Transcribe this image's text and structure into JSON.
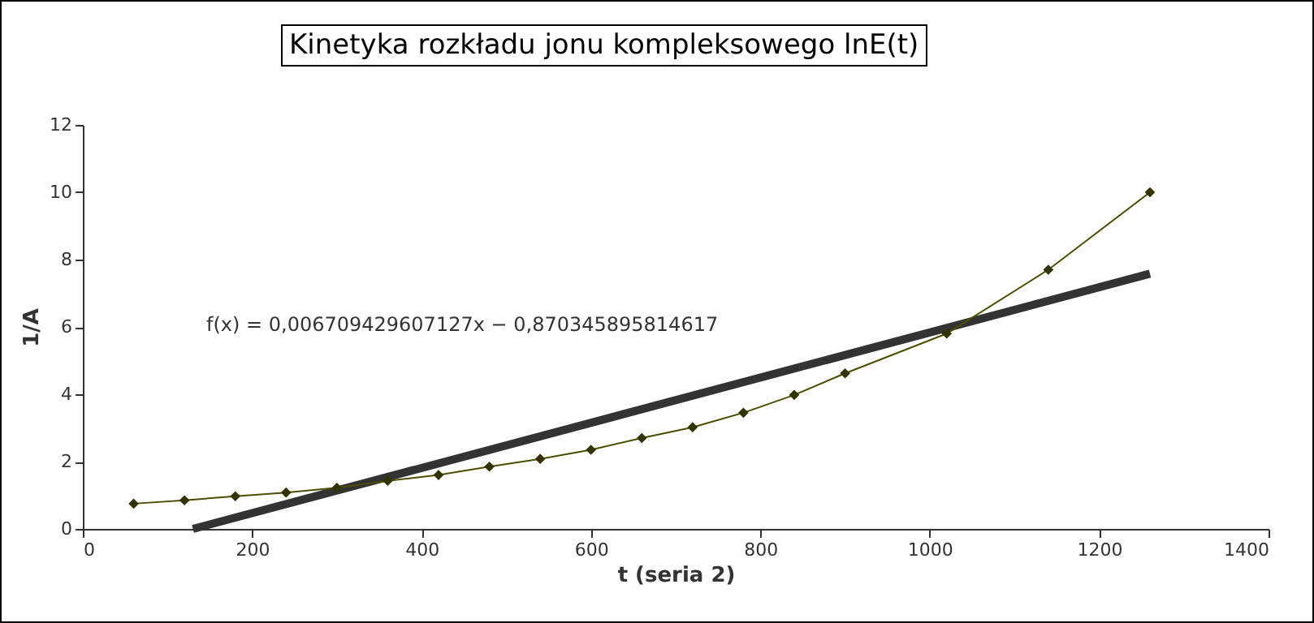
{
  "chart_data": {
    "type": "line",
    "title": "Kinetyka rozkładu jonu kompleksowego lnE(t)",
    "xlabel": "t (seria 2)",
    "ylabel": "1/A",
    "annotations": [
      "f(x) = 0,006709429607127x − 0,870345895814617"
    ],
    "x": [
      60,
      120,
      180,
      240,
      300,
      360,
      420,
      480,
      540,
      600,
      660,
      720,
      780,
      840,
      900,
      1020,
      1140,
      1260
    ],
    "series": [
      {
        "color": "#4d4d00",
        "values": [
          0.75,
          0.85,
          0.97,
          1.08,
          1.22,
          1.43,
          1.6,
          1.85,
          2.08,
          2.35,
          2.7,
          3.02,
          3.45,
          3.98,
          4.62,
          5.8,
          7.7,
          10.0
        ]
      },
      {
        "type": "line",
        "color": "#333333",
        "marker": "none",
        "x": [
          130,
          1260
        ],
        "values": [
          0.0,
          7.58
        ]
      }
    ],
    "xlim": [
      0,
      1400
    ],
    "xticks": [
      0,
      200,
      400,
      600,
      800,
      1000,
      1200,
      1400
    ],
    "ylim": [
      0,
      12
    ],
    "yticks": [
      0,
      2,
      4,
      6,
      8,
      10,
      12
    ],
    "grid": false,
    "marker": "diamond"
  }
}
